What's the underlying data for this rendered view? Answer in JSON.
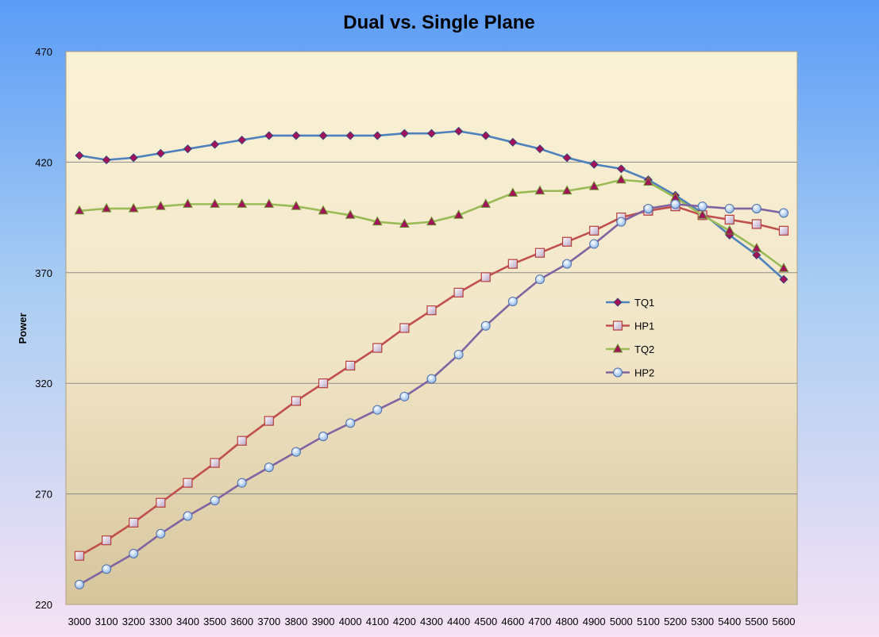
{
  "chart_data": {
    "type": "line",
    "title": "Dual vs. Single Plane",
    "xlabel": "",
    "ylabel": "Power",
    "x": [
      3000,
      3100,
      3200,
      3300,
      3400,
      3500,
      3600,
      3700,
      3800,
      3900,
      4000,
      4100,
      4200,
      4300,
      4400,
      4500,
      4600,
      4700,
      4800,
      4900,
      5000,
      5100,
      5200,
      5300,
      5400,
      5500,
      5600
    ],
    "ylim": [
      220,
      470
    ],
    "yticks": [
      220,
      270,
      320,
      370,
      420,
      470
    ],
    "grid": "horizontal",
    "legend_position": "right",
    "series": [
      {
        "name": "TQ1",
        "color": "#4f81bd",
        "marker_color": "#a0125a",
        "marker": "diamond",
        "values": [
          423,
          421,
          422,
          424,
          426,
          428,
          430,
          432,
          432,
          432,
          432,
          432,
          433,
          433,
          434,
          432,
          429,
          426,
          422,
          419,
          417,
          412,
          405,
          397,
          387,
          378,
          367
        ]
      },
      {
        "name": "HP1",
        "color": "#c0504d",
        "marker_color": "#c8b4c8",
        "marker": "square",
        "values": [
          242,
          249,
          257,
          266,
          275,
          284,
          294,
          303,
          312,
          320,
          328,
          336,
          345,
          353,
          361,
          368,
          374,
          379,
          384,
          389,
          395,
          398,
          400,
          396,
          394,
          392,
          389
        ]
      },
      {
        "name": "TQ2",
        "color": "#9bbb59",
        "marker_color": "#a0125a",
        "marker": "triangle",
        "values": [
          398,
          399,
          399,
          400,
          401,
          401,
          401,
          401,
          400,
          398,
          396,
          393,
          392,
          393,
          396,
          401,
          406,
          407,
          407,
          409,
          412,
          411,
          404,
          396,
          389,
          381,
          372
        ]
      },
      {
        "name": "HP2",
        "color": "#8064a2",
        "marker_color": "#c8dcf5",
        "marker": "circle",
        "values": [
          229,
          236,
          243,
          252,
          260,
          267,
          275,
          282,
          289,
          296,
          302,
          308,
          314,
          322,
          333,
          346,
          357,
          367,
          374,
          383,
          393,
          399,
          401,
          400,
          399,
          399,
          397
        ]
      }
    ]
  }
}
